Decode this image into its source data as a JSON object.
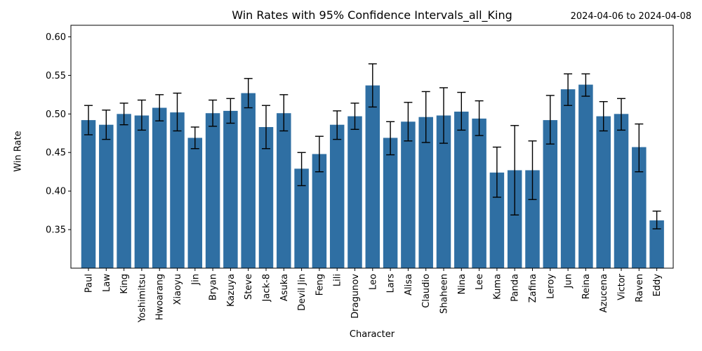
{
  "chart_data": {
    "type": "bar",
    "title": "Win Rates with 95% Confidence Intervals_all_King",
    "date_range": "2024-04-06 to 2024-04-08",
    "xlabel": "Character",
    "ylabel": "Win Rate",
    "ylim": [
      0.3,
      0.615
    ],
    "yticks": [
      "0.35",
      "0.40",
      "0.45",
      "0.50",
      "0.55",
      "0.60"
    ],
    "ytick_values": [
      0.35,
      0.4,
      0.45,
      0.5,
      0.55,
      0.6
    ],
    "bar_color": "#2f6fa3",
    "categories": [
      "Paul",
      "Law",
      "King",
      "Yoshimitsu",
      "Hwoarang",
      "Xiaoyu",
      "Jin",
      "Bryan",
      "Kazuya",
      "Steve",
      "Jack-8",
      "Asuka",
      "Devil Jin",
      "Feng",
      "Lili",
      "Dragunov",
      "Leo",
      "Lars",
      "Alisa",
      "Claudio",
      "Shaheen",
      "Nina",
      "Lee",
      "Kuma",
      "Panda",
      "Zafina",
      "Leroy",
      "Jun",
      "Reina",
      "Azucena",
      "Victor",
      "Raven",
      "Eddy"
    ],
    "values": [
      0.492,
      0.486,
      0.5,
      0.498,
      0.508,
      0.502,
      0.469,
      0.501,
      0.504,
      0.527,
      0.483,
      0.501,
      0.429,
      0.448,
      0.486,
      0.497,
      0.537,
      0.469,
      0.49,
      0.496,
      0.498,
      0.503,
      0.494,
      0.424,
      0.427,
      0.427,
      0.492,
      0.532,
      0.538,
      0.497,
      0.5,
      0.457,
      0.362
    ],
    "ci_lower": [
      0.473,
      0.467,
      0.486,
      0.479,
      0.491,
      0.478,
      0.455,
      0.484,
      0.488,
      0.508,
      0.455,
      0.478,
      0.407,
      0.425,
      0.467,
      0.48,
      0.509,
      0.447,
      0.465,
      0.463,
      0.462,
      0.479,
      0.472,
      0.392,
      0.369,
      0.389,
      0.461,
      0.511,
      0.523,
      0.478,
      0.479,
      0.425,
      0.351
    ],
    "ci_upper": [
      0.511,
      0.505,
      0.514,
      0.518,
      0.525,
      0.527,
      0.483,
      0.518,
      0.52,
      0.546,
      0.511,
      0.525,
      0.45,
      0.471,
      0.504,
      0.514,
      0.565,
      0.49,
      0.515,
      0.529,
      0.534,
      0.528,
      0.517,
      0.457,
      0.485,
      0.465,
      0.524,
      0.552,
      0.552,
      0.516,
      0.52,
      0.487,
      0.374
    ]
  }
}
